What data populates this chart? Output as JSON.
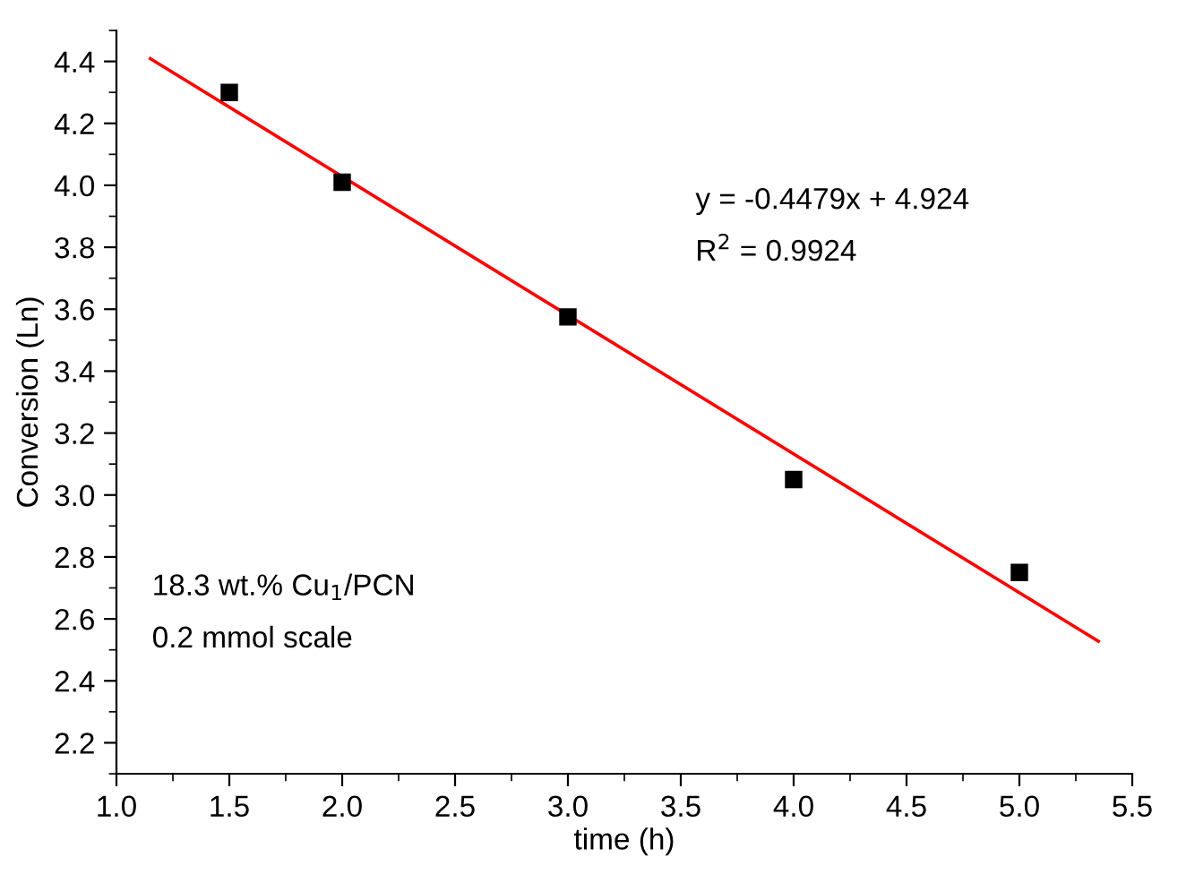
{
  "chart_data": {
    "type": "scatter",
    "xlabel": "time (h)",
    "ylabel": "Conversion (Ln)",
    "xlim": [
      1.0,
      5.5
    ],
    "xticks": [
      {
        "value": 1,
        "label": "1.0"
      },
      1.5,
      {
        "value": 2,
        "label": "2.0"
      },
      2.5,
      {
        "value": 3,
        "label": "3.0"
      },
      3.5,
      {
        "value": 4,
        "label": "4.0"
      },
      4.5,
      {
        "value": 5,
        "label": "5.0"
      },
      5.5
    ],
    "ylim": [
      2.1,
      4.5
    ],
    "yticks": [
      2.2,
      2.4,
      2.6,
      2.8,
      {
        "value": 3,
        "label": "3.0"
      },
      3.2,
      3.4,
      3.6,
      3.8,
      {
        "value": 4,
        "label": "4.0"
      },
      4.2,
      4.4
    ],
    "grid": false,
    "legend": false,
    "series": [
      {
        "color": "#000000",
        "marker": "square",
        "x": [
          1.5,
          2.0,
          3.0,
          4.0,
          5.0
        ],
        "values": [
          4.3,
          4.01,
          3.575,
          3.05,
          2.75
        ]
      },
      {
        "type": "line",
        "marker": "none",
        "color": "#ff0000",
        "x": [
          1.15,
          5.35
        ],
        "values": [
          4.409,
          2.528
        ]
      }
    ],
    "annotations": [
      "y = -0.4479x + 4.924",
      "R$^{2}$ = 0.9924",
      "18.3 wt.% Cu$_{1}$/PCN",
      "0.2 mmol scale"
    ]
  }
}
